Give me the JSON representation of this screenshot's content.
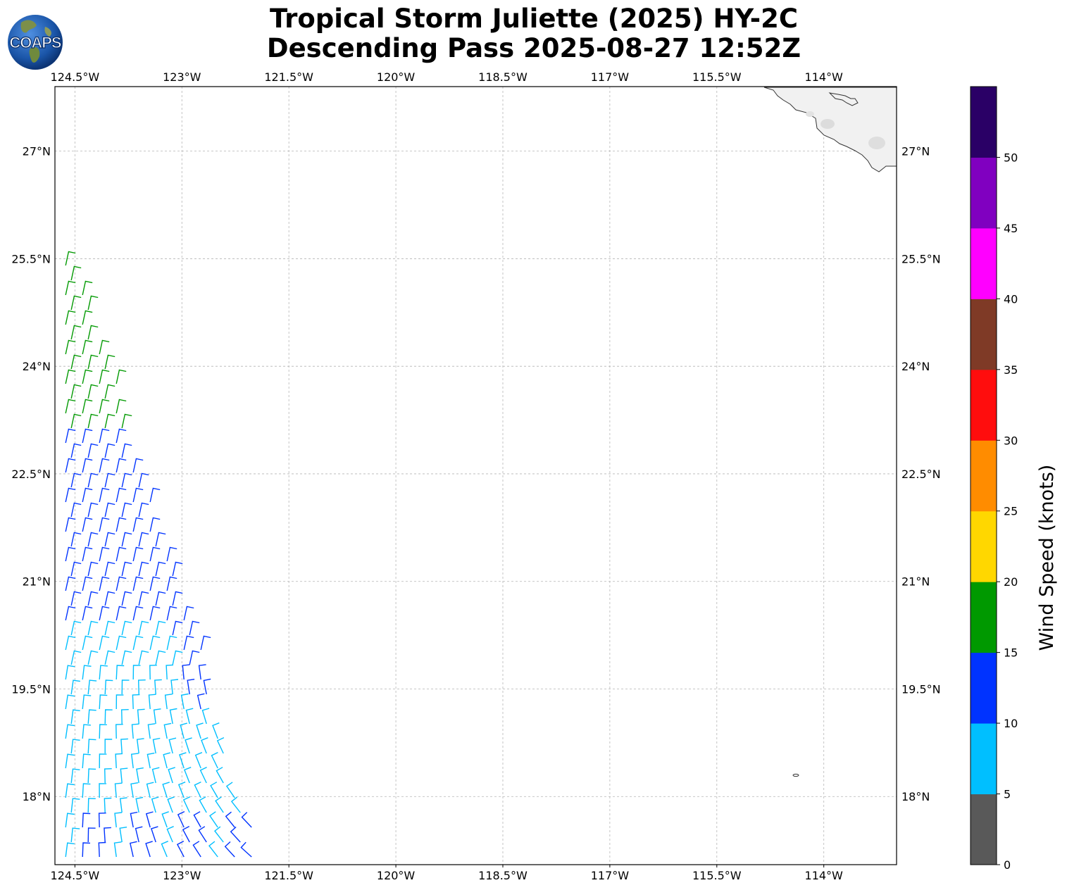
{
  "title": {
    "line1": "Tropical Storm Juliette (2025) HY-2C",
    "line2": "Descending Pass 2025-08-27 12:52Z"
  },
  "logo": {
    "text": "COAPS"
  },
  "map": {
    "lon_range": [
      -124.78,
      -112.98
    ],
    "lat_range": [
      17.05,
      27.9
    ],
    "lon_ticks": [
      {
        "value": -124.5,
        "label": "124.5°W"
      },
      {
        "value": -123.0,
        "label": "123°W"
      },
      {
        "value": -121.5,
        "label": "121.5°W"
      },
      {
        "value": -120.0,
        "label": "120°W"
      },
      {
        "value": -118.5,
        "label": "118.5°W"
      },
      {
        "value": -117.0,
        "label": "117°W"
      },
      {
        "value": -115.5,
        "label": "115.5°W"
      },
      {
        "value": -114.0,
        "label": "114°W"
      }
    ],
    "lat_ticks": [
      {
        "value": 27.0,
        "label": "27°N"
      },
      {
        "value": 25.5,
        "label": "25.5°N"
      },
      {
        "value": 24.0,
        "label": "24°N"
      },
      {
        "value": 22.5,
        "label": "22.5°N"
      },
      {
        "value": 21.0,
        "label": "21°N"
      },
      {
        "value": 19.5,
        "label": "19.5°N"
      },
      {
        "value": 18.0,
        "label": "18°N"
      }
    ],
    "gridlines": true,
    "land": "Baja California coast, top-right corner",
    "wind_barbs_description": "HY-2C swath along western edge, 17–25.7°N"
  },
  "colorbar": {
    "label": "Wind Speed (knots)",
    "ticks": [
      "0",
      "5",
      "10",
      "15",
      "20",
      "25",
      "30",
      "35",
      "40",
      "45",
      "50"
    ],
    "bins": [
      {
        "range": "0-5",
        "color": "#595959"
      },
      {
        "range": "5-10",
        "color": "#00bfff"
      },
      {
        "range": "10-15",
        "color": "#0033ff"
      },
      {
        "range": "15-20",
        "color": "#009900"
      },
      {
        "range": "20-25",
        "color": "#ffd700"
      },
      {
        "range": "25-30",
        "color": "#ff8c00"
      },
      {
        "range": "30-35",
        "color": "#ff0d0d"
      },
      {
        "range": "35-40",
        "color": "#7f3a26"
      },
      {
        "range": "40-45",
        "color": "#ff00ff"
      },
      {
        "range": "45-50",
        "color": "#8000c0"
      },
      {
        "range": "50+",
        "color": "#2a0066"
      }
    ]
  }
}
